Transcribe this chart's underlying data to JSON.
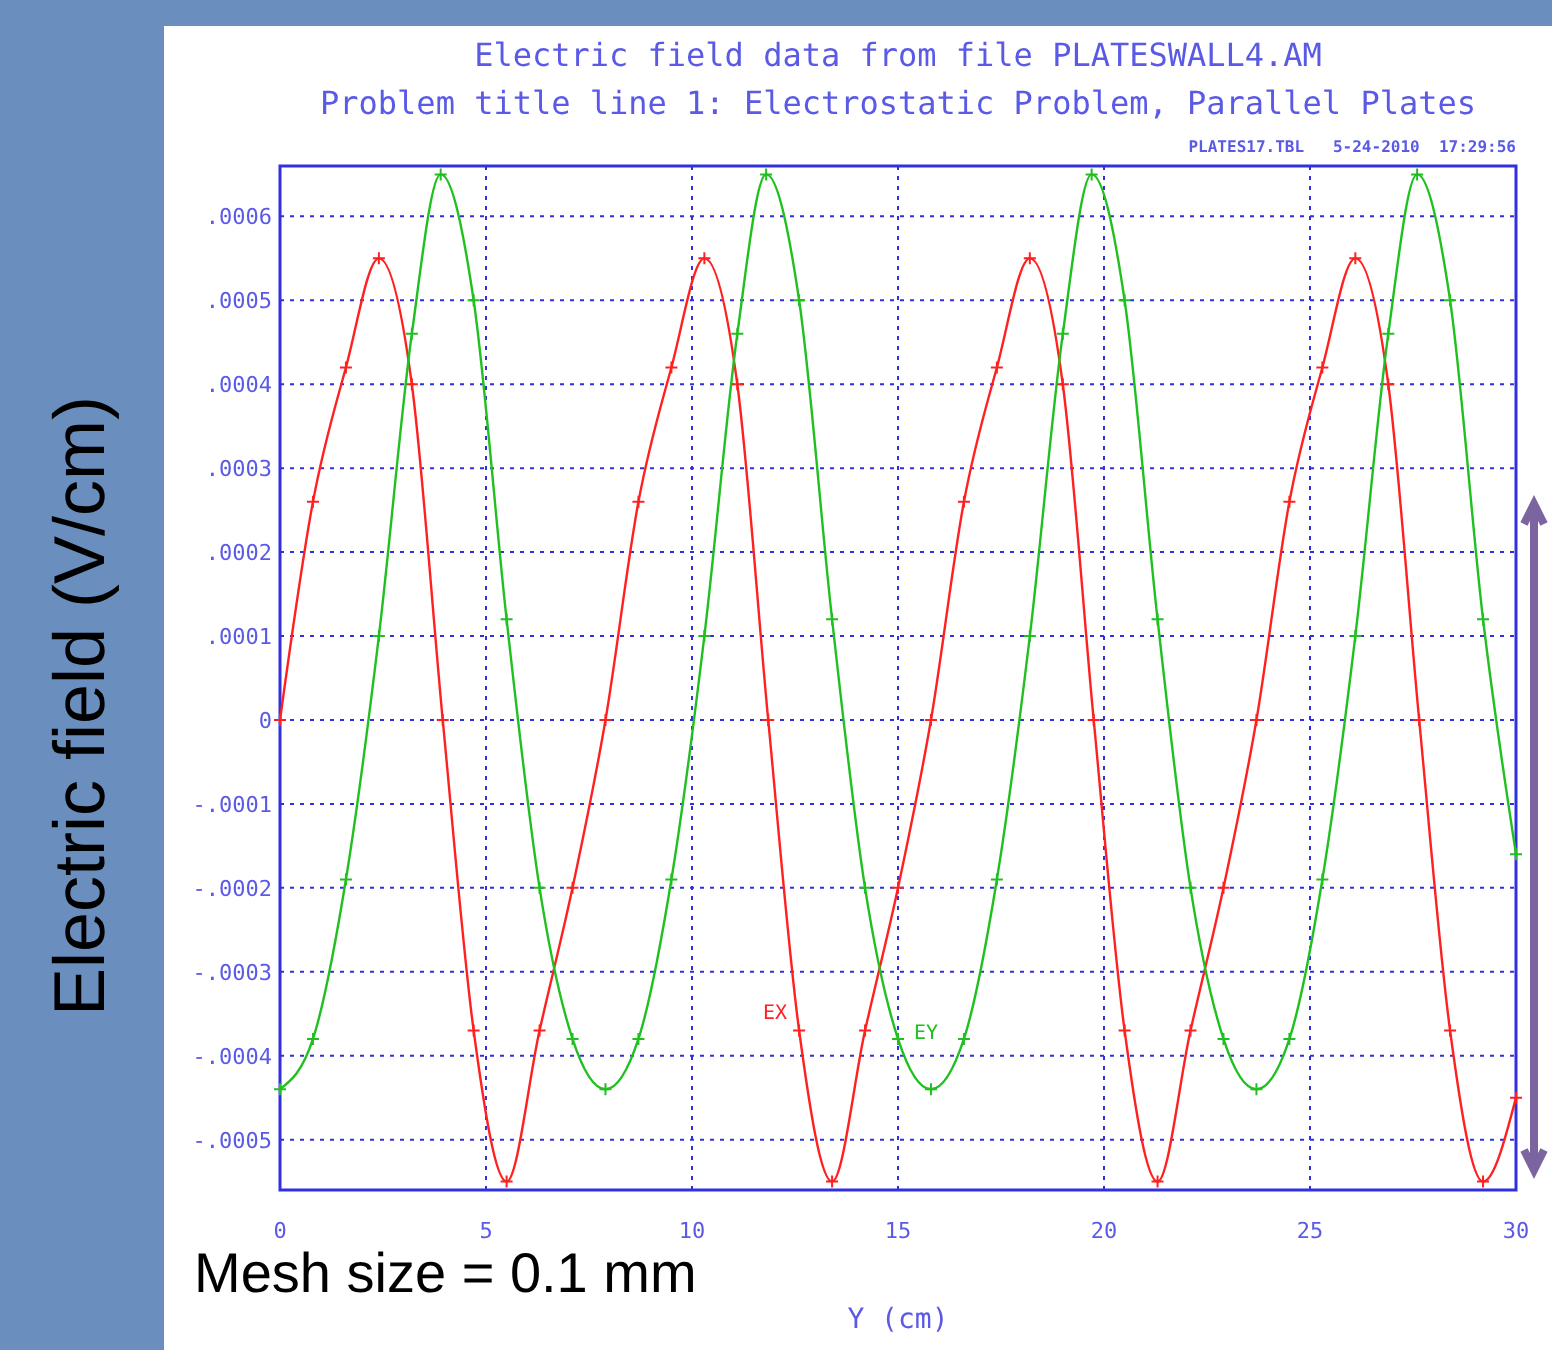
{
  "chart_data": {
    "type": "line",
    "title": "Electric field data from file PLATESWALL4.AM",
    "subtitle": "Problem title line 1: Electrostatic Problem, Parallel Plates",
    "xlabel": "Y (cm)",
    "ylabel": "Electric field (V/cm)",
    "annotations": [
      "PLATES17.TBL   5-24-2010  17:29:56",
      "Mesh size = 0.1 mm"
    ],
    "series": [
      {
        "name": "EX",
        "color": "#ff2020",
        "x": [
          0,
          0.8,
          1.6,
          2.4,
          3.2,
          3.95,
          4.7,
          5.5,
          6.3,
          7.1,
          7.9,
          8.7,
          9.5,
          10.3,
          11.1,
          11.85,
          12.6,
          13.4,
          14.2,
          15.0,
          15.8,
          16.6,
          17.4,
          18.2,
          19.0,
          19.75,
          20.5,
          21.3,
          22.1,
          22.9,
          23.7,
          24.5,
          25.3,
          26.1,
          26.9,
          27.65,
          28.4,
          29.2,
          30.0
        ],
        "values": [
          0,
          0.00026,
          0.00042,
          0.00055,
          0.0004,
          0,
          -0.00037,
          -0.00055,
          -0.00037,
          -0.0002,
          0,
          0.00026,
          0.00042,
          0.00055,
          0.0004,
          0,
          -0.00037,
          -0.00055,
          -0.00037,
          -0.0002,
          0,
          0.00026,
          0.00042,
          0.00055,
          0.0004,
          0,
          -0.00037,
          -0.00055,
          -0.00037,
          -0.0002,
          0,
          0.00026,
          0.00042,
          0.00055,
          0.0004,
          0,
          -0.00037,
          -0.00055,
          -0.00045
        ]
      },
      {
        "name": "EY",
        "color": "#20c020",
        "x": [
          0,
          0.8,
          1.6,
          2.4,
          3.2,
          3.9,
          4.7,
          5.5,
          6.3,
          7.1,
          7.9,
          8.7,
          9.5,
          10.3,
          11.1,
          11.8,
          12.6,
          13.4,
          14.2,
          15.0,
          15.8,
          16.6,
          17.4,
          18.2,
          19.0,
          19.7,
          20.5,
          21.3,
          22.1,
          22.9,
          23.7,
          24.5,
          25.3,
          26.1,
          26.9,
          27.6,
          28.4,
          29.2,
          30.0
        ],
        "values": [
          -0.00044,
          -0.00038,
          -0.00019,
          0.0001,
          0.00046,
          0.00065,
          0.0005,
          0.00012,
          -0.0002,
          -0.00038,
          -0.00044,
          -0.00038,
          -0.00019,
          0.0001,
          0.00046,
          0.00065,
          0.0005,
          0.00012,
          -0.0002,
          -0.00038,
          -0.00044,
          -0.00038,
          -0.00019,
          0.0001,
          0.00046,
          0.00065,
          0.0005,
          0.00012,
          -0.0002,
          -0.00038,
          -0.00044,
          -0.00038,
          -0.00019,
          0.0001,
          0.00046,
          0.00065,
          0.0005,
          0.00012,
          -0.00016
        ]
      }
    ],
    "xlim": [
      0,
      30
    ],
    "xticks": [
      0,
      5,
      10,
      15,
      20,
      25,
      30
    ],
    "ylim": [
      -0.00056,
      0.00066
    ],
    "yticks": [
      {
        "value": 0.0006,
        "label": ".0006"
      },
      {
        "value": 0.0005,
        "label": ".0005"
      },
      {
        "value": 0.0004,
        "label": ".0004"
      },
      {
        "value": 0.0003,
        "label": ".0003"
      },
      {
        "value": 0.0002,
        "label": ".0002"
      },
      {
        "value": 0.0001,
        "label": ".0001"
      },
      {
        "value": 0,
        "label": "0"
      },
      {
        "value": -0.0001,
        "label": "-.0001"
      },
      {
        "value": -0.0002,
        "label": "-.0002"
      },
      {
        "value": -0.0003,
        "label": "-.0003"
      },
      {
        "value": -0.0004,
        "label": "-.0004"
      },
      {
        "value": -0.0005,
        "label": "-.0005"
      }
    ],
    "grid": true,
    "marker": "cross",
    "line_style": "solid"
  }
}
